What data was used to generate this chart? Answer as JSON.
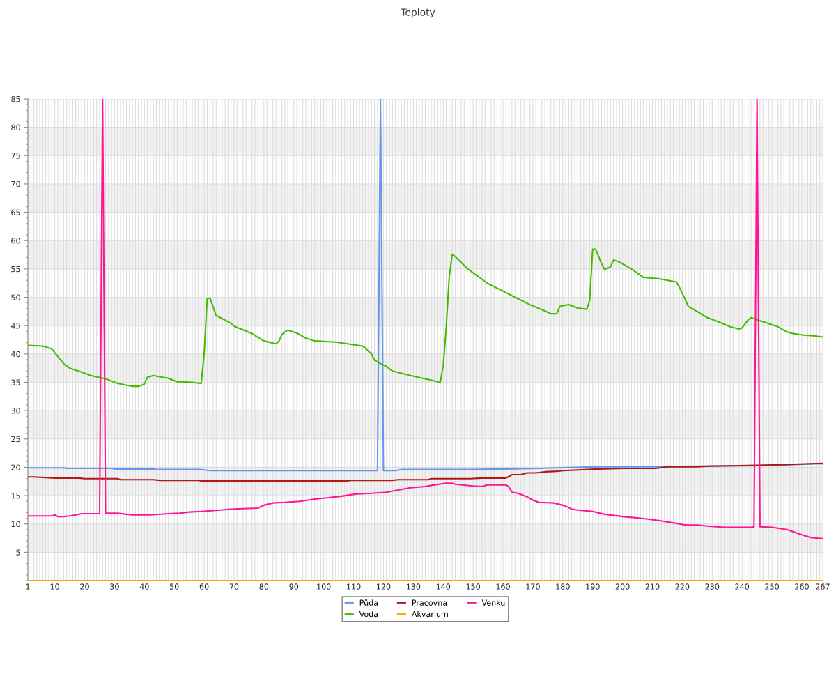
{
  "chart_data": {
    "type": "line",
    "title": "Teploty",
    "xlim": [
      1,
      267
    ],
    "xticks": [
      1,
      {
        "value": 2,
        "label": null
      },
      {
        "value": 3,
        "label": null
      },
      {
        "value": 4,
        "label": null
      },
      {
        "value": 5,
        "label": null
      },
      {
        "value": 6,
        "label": null
      },
      {
        "value": 7,
        "label": null
      },
      {
        "value": 8,
        "label": null
      },
      {
        "value": 9,
        "label": null
      },
      10,
      {
        "value": 11,
        "label": null
      },
      {
        "value": 12,
        "label": null
      },
      {
        "value": 13,
        "label": null
      },
      {
        "value": 14,
        "label": null
      },
      {
        "value": 15,
        "label": null
      },
      {
        "value": 16,
        "label": null
      },
      {
        "value": 17,
        "label": null
      },
      {
        "value": 18,
        "label": null
      },
      {
        "value": 19,
        "label": null
      },
      20,
      {
        "value": 21,
        "label": null
      },
      {
        "value": 22,
        "label": null
      },
      {
        "value": 23,
        "label": null
      },
      {
        "value": 24,
        "label": null
      },
      {
        "value": 25,
        "label": null
      },
      {
        "value": 26,
        "label": null
      },
      {
        "value": 27,
        "label": null
      },
      {
        "value": 28,
        "label": null
      },
      {
        "value": 29,
        "label": null
      },
      30,
      {
        "value": 31,
        "label": null
      },
      {
        "value": 32,
        "label": null
      },
      {
        "value": 33,
        "label": null
      },
      {
        "value": 34,
        "label": null
      },
      {
        "value": 35,
        "label": null
      },
      {
        "value": 36,
        "label": null
      },
      {
        "value": 37,
        "label": null
      },
      {
        "value": 38,
        "label": null
      },
      {
        "value": 39,
        "label": null
      },
      40,
      {
        "value": 41,
        "label": null
      },
      {
        "value": 42,
        "label": null
      },
      {
        "value": 43,
        "label": null
      },
      {
        "value": 44,
        "label": null
      },
      {
        "value": 45,
        "label": null
      },
      {
        "value": 46,
        "label": null
      },
      {
        "value": 47,
        "label": null
      },
      {
        "value": 48,
        "label": null
      },
      {
        "value": 49,
        "label": null
      },
      50,
      {
        "value": 51,
        "label": null
      },
      {
        "value": 52,
        "label": null
      },
      {
        "value": 53,
        "label": null
      },
      {
        "value": 54,
        "label": null
      },
      {
        "value": 55,
        "label": null
      },
      {
        "value": 56,
        "label": null
      },
      {
        "value": 57,
        "label": null
      },
      {
        "value": 58,
        "label": null
      },
      {
        "value": 59,
        "label": null
      },
      60,
      {
        "value": 61,
        "label": null
      },
      {
        "value": 62,
        "label": null
      },
      {
        "value": 63,
        "label": null
      },
      {
        "value": 64,
        "label": null
      },
      {
        "value": 65,
        "label": null
      },
      {
        "value": 66,
        "label": null
      },
      {
        "value": 67,
        "label": null
      },
      {
        "value": 68,
        "label": null
      },
      {
        "value": 69,
        "label": null
      },
      70,
      {
        "value": 71,
        "label": null
      },
      {
        "value": 72,
        "label": null
      },
      {
        "value": 73,
        "label": null
      },
      {
        "value": 74,
        "label": null
      },
      {
        "value": 75,
        "label": null
      },
      {
        "value": 76,
        "label": null
      },
      {
        "value": 77,
        "label": null
      },
      {
        "value": 78,
        "label": null
      },
      {
        "value": 79,
        "label": null
      },
      80,
      {
        "value": 81,
        "label": null
      },
      {
        "value": 82,
        "label": null
      },
      {
        "value": 83,
        "label": null
      },
      {
        "value": 84,
        "label": null
      },
      {
        "value": 85,
        "label": null
      },
      {
        "value": 86,
        "label": null
      },
      {
        "value": 87,
        "label": null
      },
      {
        "value": 88,
        "label": null
      },
      {
        "value": 89,
        "label": null
      },
      90,
      {
        "value": 91,
        "label": null
      },
      {
        "value": 92,
        "label": null
      },
      {
        "value": 93,
        "label": null
      },
      {
        "value": 94,
        "label": null
      },
      {
        "value": 95,
        "label": null
      },
      {
        "value": 96,
        "label": null
      },
      {
        "value": 97,
        "label": null
      },
      {
        "value": 98,
        "label": null
      },
      {
        "value": 99,
        "label": null
      },
      100,
      {
        "value": 101,
        "label": null
      },
      {
        "value": 102,
        "label": null
      },
      {
        "value": 103,
        "label": null
      },
      {
        "value": 104,
        "label": null
      },
      {
        "value": 105,
        "label": null
      },
      {
        "value": 106,
        "label": null
      },
      {
        "value": 107,
        "label": null
      },
      {
        "value": 108,
        "label": null
      },
      {
        "value": 109,
        "label": null
      },
      110,
      {
        "value": 111,
        "label": null
      },
      {
        "value": 112,
        "label": null
      },
      {
        "value": 113,
        "label": null
      },
      {
        "value": 114,
        "label": null
      },
      {
        "value": 115,
        "label": null
      },
      {
        "value": 116,
        "label": null
      },
      {
        "value": 117,
        "label": null
      },
      {
        "value": 118,
        "label": null
      },
      {
        "value": 119,
        "label": null
      },
      120,
      {
        "value": 121,
        "label": null
      },
      {
        "value": 122,
        "label": null
      },
      {
        "value": 123,
        "label": null
      },
      {
        "value": 124,
        "label": null
      },
      {
        "value": 125,
        "label": null
      },
      {
        "value": 126,
        "label": null
      },
      {
        "value": 127,
        "label": null
      },
      {
        "value": 128,
        "label": null
      },
      {
        "value": 129,
        "label": null
      },
      130,
      {
        "value": 131,
        "label": null
      },
      {
        "value": 132,
        "label": null
      },
      {
        "value": 133,
        "label": null
      },
      {
        "value": 134,
        "label": null
      },
      {
        "value": 135,
        "label": null
      },
      {
        "value": 136,
        "label": null
      },
      {
        "value": 137,
        "label": null
      },
      {
        "value": 138,
        "label": null
      },
      {
        "value": 139,
        "label": null
      },
      140,
      {
        "value": 141,
        "label": null
      },
      {
        "value": 142,
        "label": null
      },
      {
        "value": 143,
        "label": null
      },
      {
        "value": 144,
        "label": null
      },
      {
        "value": 145,
        "label": null
      },
      {
        "value": 146,
        "label": null
      },
      {
        "value": 147,
        "label": null
      },
      {
        "value": 148,
        "label": null
      },
      {
        "value": 149,
        "label": null
      },
      150,
      {
        "value": 151,
        "label": null
      },
      {
        "value": 152,
        "label": null
      },
      {
        "value": 153,
        "label": null
      },
      {
        "value": 154,
        "label": null
      },
      {
        "value": 155,
        "label": null
      },
      {
        "value": 156,
        "label": null
      },
      {
        "value": 157,
        "label": null
      },
      {
        "value": 158,
        "label": null
      },
      {
        "value": 159,
        "label": null
      },
      160,
      {
        "value": 161,
        "label": null
      },
      {
        "value": 162,
        "label": null
      },
      {
        "value": 163,
        "label": null
      },
      {
        "value": 164,
        "label": null
      },
      {
        "value": 165,
        "label": null
      },
      {
        "value": 166,
        "label": null
      },
      {
        "value": 167,
        "label": null
      },
      {
        "value": 168,
        "label": null
      },
      {
        "value": 169,
        "label": null
      },
      170,
      {
        "value": 171,
        "label": null
      },
      {
        "value": 172,
        "label": null
      },
      {
        "value": 173,
        "label": null
      },
      {
        "value": 174,
        "label": null
      },
      {
        "value": 175,
        "label": null
      },
      {
        "value": 176,
        "label": null
      },
      {
        "value": 177,
        "label": null
      },
      {
        "value": 178,
        "label": null
      },
      {
        "value": 179,
        "label": null
      },
      180,
      {
        "value": 181,
        "label": null
      },
      {
        "value": 182,
        "label": null
      },
      {
        "value": 183,
        "label": null
      },
      {
        "value": 184,
        "label": null
      },
      {
        "value": 185,
        "label": null
      },
      {
        "value": 186,
        "label": null
      },
      {
        "value": 187,
        "label": null
      },
      {
        "value": 188,
        "label": null
      },
      {
        "value": 189,
        "label": null
      },
      190,
      {
        "value": 191,
        "label": null
      },
      {
        "value": 192,
        "label": null
      },
      {
        "value": 193,
        "label": null
      },
      {
        "value": 194,
        "label": null
      },
      {
        "value": 195,
        "label": null
      },
      {
        "value": 196,
        "label": null
      },
      {
        "value": 197,
        "label": null
      },
      {
        "value": 198,
        "label": null
      },
      {
        "value": 199,
        "label": null
      },
      200,
      {
        "value": 201,
        "label": null
      },
      {
        "value": 202,
        "label": null
      },
      {
        "value": 203,
        "label": null
      },
      {
        "value": 204,
        "label": null
      },
      {
        "value": 205,
        "label": null
      },
      {
        "value": 206,
        "label": null
      },
      {
        "value": 207,
        "label": null
      },
      {
        "value": 208,
        "label": null
      },
      {
        "value": 209,
        "label": null
      },
      210,
      {
        "value": 211,
        "label": null
      },
      {
        "value": 212,
        "label": null
      },
      {
        "value": 213,
        "label": null
      },
      {
        "value": 214,
        "label": null
      },
      {
        "value": 215,
        "label": null
      },
      {
        "value": 216,
        "label": null
      },
      {
        "value": 217,
        "label": null
      },
      {
        "value": 218,
        "label": null
      },
      {
        "value": 219,
        "label": null
      },
      220,
      {
        "value": 221,
        "label": null
      },
      {
        "value": 222,
        "label": null
      },
      {
        "value": 223,
        "label": null
      },
      {
        "value": 224,
        "label": null
      },
      {
        "value": 225,
        "label": null
      },
      {
        "value": 226,
        "label": null
      },
      {
        "value": 227,
        "label": null
      },
      {
        "value": 228,
        "label": null
      },
      {
        "value": 229,
        "label": null
      },
      230,
      {
        "value": 231,
        "label": null
      },
      {
        "value": 232,
        "label": null
      },
      {
        "value": 233,
        "label": null
      },
      {
        "value": 234,
        "label": null
      },
      {
        "value": 235,
        "label": null
      },
      {
        "value": 236,
        "label": null
      },
      {
        "value": 237,
        "label": null
      },
      {
        "value": 238,
        "label": null
      },
      {
        "value": 239,
        "label": null
      },
      240,
      {
        "value": 241,
        "label": null
      },
      {
        "value": 242,
        "label": null
      },
      {
        "value": 243,
        "label": null
      },
      {
        "value": 244,
        "label": null
      },
      {
        "value": 245,
        "label": null
      },
      {
        "value": 246,
        "label": null
      },
      {
        "value": 247,
        "label": null
      },
      {
        "value": 248,
        "label": null
      },
      {
        "value": 249,
        "label": null
      },
      250,
      {
        "value": 251,
        "label": null
      },
      {
        "value": 252,
        "label": null
      },
      {
        "value": 253,
        "label": null
      },
      {
        "value": 254,
        "label": null
      },
      {
        "value": 255,
        "label": null
      },
      {
        "value": 256,
        "label": null
      },
      {
        "value": 257,
        "label": null
      },
      {
        "value": 258,
        "label": null
      },
      {
        "value": 259,
        "label": null
      },
      260,
      {
        "value": 261,
        "label": null
      },
      {
        "value": 262,
        "label": null
      },
      {
        "value": 263,
        "label": null
      },
      {
        "value": 264,
        "label": null
      },
      {
        "value": 265,
        "label": null
      },
      {
        "value": 266,
        "label": null
      },
      267
    ],
    "ylim": [
      0,
      85
    ],
    "yticks": [
      5,
      10,
      15,
      20,
      25,
      30,
      35,
      40,
      45,
      50,
      55,
      60,
      65,
      70,
      75,
      80,
      85
    ],
    "grid": true,
    "legend": "bottom",
    "series": [
      {
        "name": "Půda",
        "color": "#6495ed",
        "x": [
          1,
          13,
          14,
          29,
          30,
          43,
          44,
          59,
          62,
          118,
          119,
          120,
          124,
          126,
          149,
          160,
          172,
          178,
          192,
          211,
          225,
          248,
          264,
          267
        ],
        "values": [
          19.9,
          19.9,
          19.8,
          19.8,
          19.7,
          19.7,
          19.6,
          19.6,
          19.4,
          19.4,
          85,
          19.4,
          19.4,
          19.6,
          19.6,
          19.7,
          19.8,
          19.9,
          20.1,
          20.1,
          20.2,
          20.3,
          20.6,
          20.6
        ]
      },
      {
        "name": "Voda",
        "color": "#44bb00",
        "x": [
          1,
          6,
          9,
          10,
          13,
          15,
          19,
          22,
          27,
          31,
          36,
          38,
          40,
          41,
          43,
          48,
          51,
          52,
          56,
          59,
          60,
          61,
          62,
          64,
          69,
          70,
          76,
          80,
          84,
          85,
          86,
          87,
          88,
          91,
          94,
          97,
          104,
          108,
          113,
          114,
          116,
          117,
          119,
          121,
          123,
          129,
          134,
          139,
          140,
          141,
          142,
          143,
          144,
          148,
          155,
          160,
          164,
          169,
          174,
          176,
          178,
          179,
          182,
          185,
          188,
          189,
          190,
          191,
          193,
          194,
          196,
          197,
          199,
          203,
          207,
          212,
          218,
          219,
          221,
          222,
          225,
          228,
          232,
          236,
          239,
          240,
          242,
          243,
          247,
          252,
          255,
          257,
          261,
          264,
          267
        ],
        "values": [
          41.5,
          41.4,
          40.9,
          40.2,
          38.3,
          37.5,
          36.8,
          36.2,
          35.6,
          34.8,
          34.3,
          34.3,
          34.7,
          35.9,
          36.2,
          35.7,
          35.1,
          35.1,
          35.0,
          34.8,
          40.0,
          49.8,
          49.8,
          46.8,
          45.4,
          44.9,
          43.6,
          42.3,
          41.8,
          42.2,
          43.4,
          43.9,
          44.2,
          43.7,
          42.8,
          42.3,
          42.1,
          41.8,
          41.4,
          41.0,
          40.0,
          38.9,
          38.3,
          37.8,
          37.0,
          36.2,
          35.6,
          35.0,
          37.9,
          44.7,
          53.5,
          57.6,
          57.2,
          55.1,
          52.4,
          51.1,
          50.0,
          48.7,
          47.6,
          47.1,
          47.1,
          48.4,
          48.7,
          48.1,
          47.9,
          49.4,
          58.5,
          58.5,
          55.9,
          54.9,
          55.4,
          56.6,
          56.2,
          55.0,
          53.5,
          53.3,
          52.7,
          51.8,
          49.6,
          48.4,
          47.5,
          46.5,
          45.7,
          44.8,
          44.4,
          44.6,
          46.0,
          46.4,
          45.7,
          44.8,
          43.9,
          43.6,
          43.3,
          43.2,
          43.0
        ]
      },
      {
        "name": "Pracovna",
        "color": "#b01818",
        "x": [
          1,
          3,
          10,
          18,
          20,
          31,
          32,
          43,
          45,
          58,
          59,
          108,
          109,
          123,
          125,
          135,
          136,
          149,
          153,
          161,
          163,
          166,
          168,
          171,
          174,
          178,
          180,
          192,
          201,
          211,
          215,
          225,
          229,
          239,
          250,
          261,
          267
        ],
        "values": [
          18.3,
          18.3,
          18.1,
          18.1,
          18.0,
          18.0,
          17.8,
          17.8,
          17.7,
          17.7,
          17.6,
          17.6,
          17.7,
          17.7,
          17.8,
          17.8,
          18.0,
          18.0,
          18.1,
          18.1,
          18.7,
          18.7,
          19.0,
          19.0,
          19.2,
          19.3,
          19.4,
          19.7,
          19.8,
          19.8,
          20.1,
          20.1,
          20.2,
          20.3,
          20.4,
          20.6,
          20.7
        ]
      },
      {
        "name": "Akvarium",
        "color": "#ffa500",
        "x": [
          1,
          267
        ],
        "values": [
          0,
          0
        ]
      },
      {
        "name": "Venku",
        "color": "#ff1493",
        "x": [
          1,
          9,
          10,
          11,
          13,
          15,
          17,
          19,
          25,
          26,
          27,
          31,
          34,
          36,
          42,
          48,
          52,
          55,
          59,
          64,
          69,
          73,
          78,
          80,
          83,
          87,
          92,
          97,
          101,
          106,
          111,
          116,
          121,
          125,
          129,
          134,
          137,
          141,
          143,
          144,
          150,
          153,
          155,
          161,
          162,
          163,
          165,
          168,
          170,
          172,
          177,
          180,
          182,
          183,
          186,
          190,
          194,
          200,
          206,
          212,
          218,
          221,
          225,
          229,
          234,
          243,
          244,
          245,
          246,
          250,
          255,
          260,
          263,
          267
        ],
        "values": [
          11.4,
          11.4,
          11.6,
          11.3,
          11.3,
          11.4,
          11.6,
          11.8,
          11.8,
          85,
          11.9,
          11.9,
          11.7,
          11.6,
          11.6,
          11.8,
          11.9,
          12.1,
          12.2,
          12.4,
          12.6,
          12.7,
          12.8,
          13.3,
          13.7,
          13.8,
          14.0,
          14.4,
          14.6,
          14.9,
          15.3,
          15.4,
          15.6,
          16.0,
          16.4,
          16.6,
          16.9,
          17.2,
          17.2,
          17.0,
          16.7,
          16.6,
          16.9,
          16.9,
          16.5,
          15.6,
          15.4,
          14.8,
          14.2,
          13.8,
          13.7,
          13.3,
          12.9,
          12.6,
          12.4,
          12.2,
          11.7,
          11.3,
          11.0,
          10.6,
          10.1,
          9.8,
          9.8,
          9.6,
          9.4,
          9.4,
          9.5,
          85,
          9.5,
          9.4,
          9.0,
          8.1,
          7.6,
          7.4
        ]
      }
    ]
  }
}
